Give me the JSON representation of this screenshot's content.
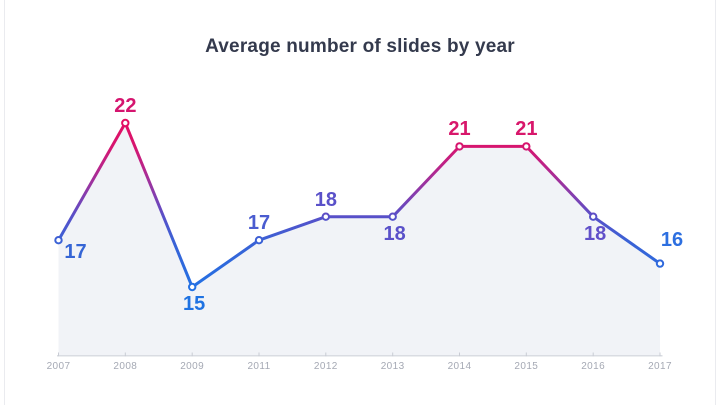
{
  "page": {
    "background": "#ffffff"
  },
  "chart_data": {
    "type": "line",
    "title": "Average number of slides by year",
    "categories": [
      "2007",
      "2008",
      "2009",
      "2011",
      "2012",
      "2013",
      "2014",
      "2015",
      "2016",
      "2017"
    ],
    "values": [
      17,
      22,
      15,
      17,
      18,
      18,
      21,
      21,
      18,
      16
    ],
    "xlabel": "",
    "ylabel": "",
    "grid": false,
    "legend": false,
    "y_axis_visible": false,
    "area_fill": true,
    "point_labels": [
      {
        "text": "17",
        "placement": "below-right",
        "color": "#3565d5"
      },
      {
        "text": "22",
        "placement": "above",
        "color": "#d5156f"
      },
      {
        "text": "15",
        "placement": "below",
        "color": "#1f72e2"
      },
      {
        "text": "17",
        "placement": "above",
        "color": "#4a5cd0"
      },
      {
        "text": "18",
        "placement": "above",
        "color": "#5a51c9"
      },
      {
        "text": "18",
        "placement": "below",
        "color": "#5a51c9"
      },
      {
        "text": "21",
        "placement": "above",
        "color": "#d8176b"
      },
      {
        "text": "21",
        "placement": "above",
        "color": "#d8176b"
      },
      {
        "text": "18",
        "placement": "below",
        "color": "#6150c9"
      },
      {
        "text": "16",
        "placement": "above-right",
        "color": "#2d6fe0"
      }
    ],
    "colors": {
      "title": "#343a4d",
      "area_fill": "#f1f3f7",
      "axis_line": "#d9dce2",
      "tick_mark": "#c9ccd4",
      "x_tick_label": "#a5a9b4",
      "point_fill": "#ffffff",
      "line_gradient_stops": [
        {
          "offset": 0.0,
          "color": "#1f73e6"
        },
        {
          "offset": 0.31,
          "color": "#3b61d5"
        },
        {
          "offset": 0.44,
          "color": "#5750c9"
        },
        {
          "offset": 0.58,
          "color": "#8a3bab"
        },
        {
          "offset": 0.73,
          "color": "#bc2388"
        },
        {
          "offset": 0.84,
          "color": "#d6156f"
        },
        {
          "offset": 1.0,
          "color": "#e60d60"
        }
      ]
    }
  }
}
